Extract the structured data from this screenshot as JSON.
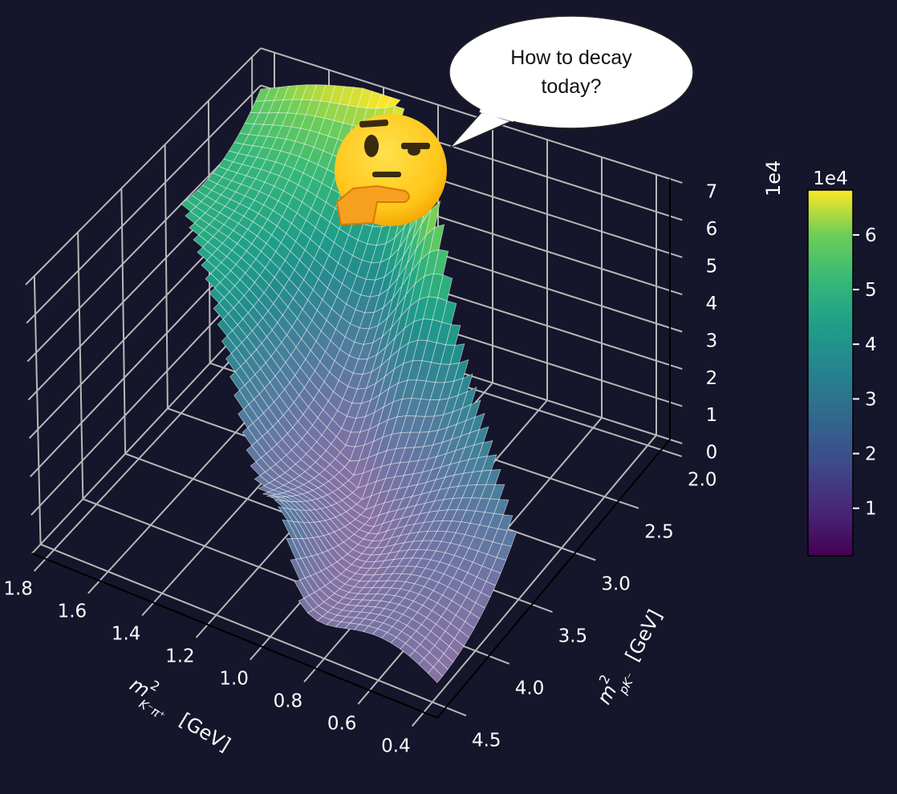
{
  "chart_data": {
    "type": "surface3d",
    "title": "",
    "x_axis": {
      "label_main": "m",
      "label_sup": "2",
      "label_sub": "K⁻π⁺",
      "label_unit": "[GeV]",
      "range": [
        1.85,
        0.35
      ],
      "ticks": [
        "1.8",
        "1.6",
        "1.4",
        "1.2",
        "1.0",
        "0.8",
        "0.6",
        "0.4"
      ],
      "tick_values": [
        1.8,
        1.6,
        1.4,
        1.2,
        1.0,
        0.8,
        0.6,
        0.4
      ]
    },
    "y_axis": {
      "label_main": "m",
      "label_sup": "2",
      "label_sub": "pK⁻",
      "label_unit": "[GeV]",
      "range": [
        4.6,
        1.9
      ],
      "ticks": [
        "2.0",
        "2.5",
        "3.0",
        "3.5",
        "4.0",
        "4.5"
      ],
      "tick_values": [
        2.0,
        2.5,
        3.0,
        3.5,
        4.0,
        4.5
      ]
    },
    "z_axis": {
      "range": [
        0,
        7
      ],
      "ticks": [
        "0",
        "1",
        "2",
        "3",
        "4",
        "5",
        "6",
        "7"
      ],
      "tick_values": [
        0,
        1,
        2,
        3,
        4,
        5,
        6,
        7
      ],
      "offset_label": "1e4"
    },
    "colorbar": {
      "offset_label": "1e4",
      "range": [
        0.13,
        6.82
      ],
      "ticks": [
        "1",
        "2",
        "3",
        "4",
        "5",
        "6"
      ],
      "tick_values": [
        1,
        2,
        3,
        4,
        5,
        6
      ],
      "colormap": "viridis"
    },
    "grid": true,
    "colors": {
      "background": "#15152b",
      "grid": "#b8b8b8",
      "mesh_line": "#ffffff"
    }
  },
  "annotation": {
    "speech_bubble_line1": "How to decay",
    "speech_bubble_line2": "today?",
    "emoji": "thinking-face-icon"
  }
}
